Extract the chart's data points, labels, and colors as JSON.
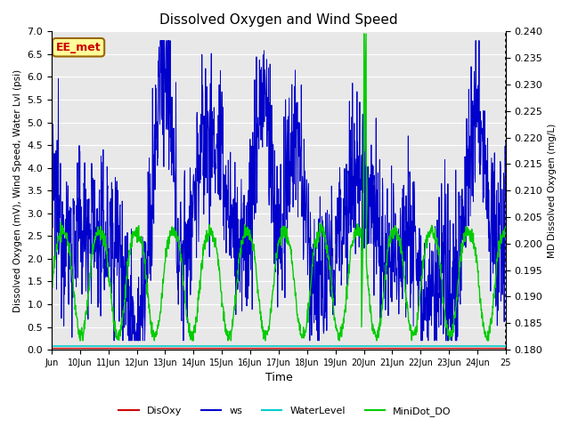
{
  "title": "Dissolved Oxygen and Wind Speed",
  "xlabel": "Time",
  "ylabel_left": "Dissolved Oxygen (mV), Wind Speed, Water Lvl (psi)",
  "ylabel_right": "MD Dissolved Oxygen (mg/L)",
  "ylim_left": [
    0.0,
    7.0
  ],
  "ylim_right": [
    0.18,
    0.24
  ],
  "yticks_left": [
    0.0,
    0.5,
    1.0,
    1.5,
    2.0,
    2.5,
    3.0,
    3.5,
    4.0,
    4.5,
    5.0,
    5.5,
    6.0,
    6.5,
    7.0
  ],
  "yticks_right": [
    0.18,
    0.185,
    0.19,
    0.195,
    0.2,
    0.205,
    0.21,
    0.215,
    0.22,
    0.225,
    0.23,
    0.235,
    0.24
  ],
  "xtick_positions": [
    0,
    1,
    2,
    3,
    4,
    5,
    6,
    7,
    8,
    9,
    10,
    11,
    12,
    13,
    14,
    15,
    16
  ],
  "xtick_labels": [
    "Jun",
    "10Jun",
    "11Jun",
    "12Jun",
    "13Jun",
    "14Jun",
    "15Jun",
    "16Jun",
    "17Jun",
    "18Jun",
    "19Jun",
    "20Jun",
    "21Jun",
    "22Jun",
    "23Jun",
    "24Jun",
    "25"
  ],
  "label_box_text": "EE_met",
  "label_box_color": "#ffff99",
  "label_box_edge": "#996600",
  "label_text_color": "#cc0000",
  "line_DisOxy_color": "#cc0000",
  "line_ws_color": "#0000cc",
  "line_WaterLevel_color": "#00cccc",
  "line_MiniDot_color": "#00cc00",
  "legend_labels": [
    "DisOxy",
    "ws",
    "WaterLevel",
    "MiniDot_DO"
  ],
  "bg_color": "#e8e8e8",
  "grid_color": "#ffffff"
}
